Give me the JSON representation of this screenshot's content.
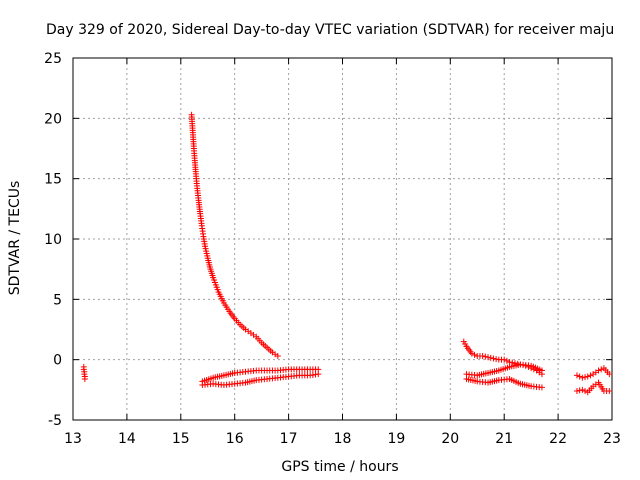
{
  "chart_data": {
    "type": "scatter",
    "title": "Day 329 of 2020, Sidereal Day-to-day VTEC variation (SDTVAR) for receiver maju",
    "xlabel": "GPS time / hours",
    "ylabel": "SDTVAR / TECUs",
    "xlim": [
      13,
      23
    ],
    "ylim": [
      -5,
      25
    ],
    "xticks": [
      "13",
      "14",
      "15",
      "16",
      "17",
      "18",
      "19",
      "20",
      "21",
      "22",
      "23"
    ],
    "yticks": [
      "-5",
      "0",
      "5",
      "10",
      "15",
      "20",
      "25"
    ],
    "grid": true,
    "marker": "plus",
    "color": "#ff0000",
    "series": [
      {
        "name": "sat-a",
        "x": [
          13.2,
          13.2,
          13.21,
          13.21,
          13.22,
          13.22
        ],
        "y": [
          -0.6,
          -0.8,
          -1.0,
          -1.2,
          -1.4,
          -1.6
        ]
      },
      {
        "name": "sat-b-decay",
        "x": [
          15.2,
          15.22,
          15.24,
          15.26,
          15.28,
          15.3,
          15.33,
          15.36,
          15.39,
          15.42,
          15.45,
          15.5,
          15.55,
          15.6,
          15.65,
          15.7,
          15.8,
          15.9,
          16.0,
          16.1,
          16.2,
          16.3,
          16.4,
          16.5,
          16.6,
          16.7,
          16.8
        ],
        "y": [
          20.3,
          19.0,
          17.7,
          16.5,
          15.4,
          14.4,
          13.2,
          12.1,
          11.1,
          10.2,
          9.4,
          8.4,
          7.5,
          6.8,
          6.2,
          5.6,
          4.7,
          4.0,
          3.4,
          2.9,
          2.5,
          2.2,
          1.9,
          1.4,
          1.0,
          0.6,
          0.3
        ]
      },
      {
        "name": "sat-c-upper",
        "x": [
          15.4,
          15.6,
          15.8,
          16.0,
          16.2,
          16.4,
          16.6,
          16.8,
          17.0,
          17.2,
          17.4,
          17.55
        ],
        "y": [
          -1.8,
          -1.5,
          -1.3,
          -1.1,
          -1.0,
          -0.9,
          -0.9,
          -0.9,
          -0.8,
          -0.8,
          -0.8,
          -0.8
        ]
      },
      {
        "name": "sat-c-lower",
        "x": [
          15.4,
          15.6,
          15.8,
          16.0,
          16.2,
          16.4,
          16.6,
          16.8,
          17.0,
          17.2,
          17.4,
          17.55
        ],
        "y": [
          -2.1,
          -2.0,
          -2.1,
          -2.0,
          -1.9,
          -1.7,
          -1.6,
          -1.5,
          -1.4,
          -1.3,
          -1.3,
          -1.2
        ]
      },
      {
        "name": "sat-d-decay",
        "x": [
          20.25,
          20.3,
          20.35,
          20.4,
          20.5,
          20.6,
          20.7,
          20.8,
          20.9,
          21.0,
          21.1,
          21.2,
          21.3,
          21.4,
          21.5,
          21.6,
          21.7
        ],
        "y": [
          1.5,
          1.1,
          0.8,
          0.5,
          0.3,
          0.3,
          0.2,
          0.1,
          0.0,
          0.0,
          -0.2,
          -0.3,
          -0.4,
          -0.5,
          -0.7,
          -0.9,
          -1.2
        ]
      },
      {
        "name": "sat-e-upper",
        "x": [
          20.3,
          20.5,
          20.7,
          20.9,
          21.1,
          21.3,
          21.5,
          21.7
        ],
        "y": [
          -1.2,
          -1.3,
          -1.1,
          -0.9,
          -0.6,
          -0.4,
          -0.5,
          -0.9
        ]
      },
      {
        "name": "sat-e-lower",
        "x": [
          20.3,
          20.5,
          20.7,
          20.9,
          21.1,
          21.3,
          21.5,
          21.7
        ],
        "y": [
          -1.6,
          -1.8,
          -1.9,
          -1.7,
          -1.6,
          -2.0,
          -2.2,
          -2.3
        ]
      },
      {
        "name": "sat-f-upper",
        "x": [
          22.35,
          22.45,
          22.55,
          22.65,
          22.75,
          22.85,
          22.95
        ],
        "y": [
          -1.3,
          -1.5,
          -1.4,
          -1.2,
          -0.9,
          -0.7,
          -1.2
        ]
      },
      {
        "name": "sat-f-lower",
        "x": [
          22.35,
          22.45,
          22.55,
          22.65,
          22.75,
          22.85,
          22.95
        ],
        "y": [
          -2.6,
          -2.5,
          -2.7,
          -2.2,
          -1.9,
          -2.6,
          -2.6
        ]
      }
    ]
  }
}
